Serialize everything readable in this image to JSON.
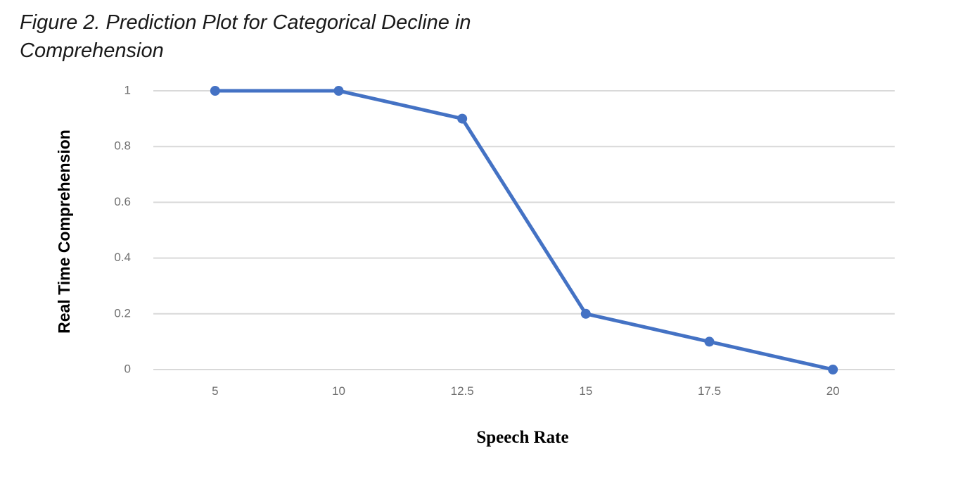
{
  "caption": "Figure 2. Prediction Plot for Categorical Decline in Comprehension",
  "chart_data": {
    "type": "line",
    "categories": [
      "5",
      "10",
      "12.5",
      "15",
      "17.5",
      "20"
    ],
    "series": [
      {
        "values": [
          1,
          1,
          0.9,
          0.2,
          0.1,
          0
        ]
      }
    ],
    "xlabel": "Speech Rate",
    "ylabel": "Real Time Comprehension",
    "ylim": [
      0,
      1
    ],
    "yticks": [
      "0",
      "0.2",
      "0.4",
      "0.6",
      "0.8",
      "1"
    ],
    "grid": true,
    "legend": "none",
    "colors": {
      "line": "#4472C4",
      "grid": "#d9d9d9",
      "tick_text": "#6e6e6e"
    }
  }
}
